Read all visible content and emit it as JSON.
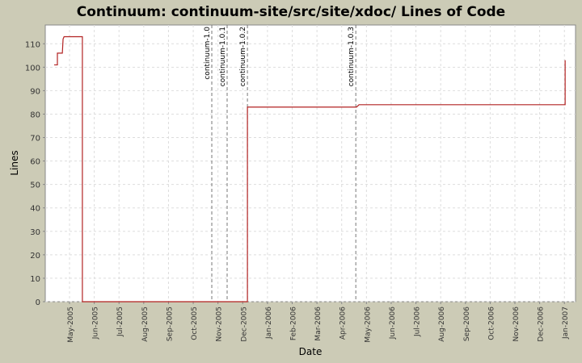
{
  "chart_data": {
    "type": "line",
    "title": "Continuum: continuum-site/src/site/xdoc/ Lines of Code",
    "x_label": "Date",
    "y_label": "Lines",
    "x": [
      3.38,
      3.51,
      3.51,
      3.71,
      3.74,
      3.78,
      4.52,
      4.52,
      11.19,
      11.19,
      15.6,
      15.7,
      24.03,
      24.03
    ],
    "values": [
      101,
      101,
      106,
      106,
      112,
      113,
      113,
      0,
      0,
      83,
      83,
      84,
      84,
      103
    ],
    "color": "#b22222",
    "xlim": [
      3.02,
      24.45
    ],
    "ylim": [
      0,
      118
    ],
    "yticks": [
      0,
      10,
      20,
      30,
      40,
      50,
      60,
      70,
      80,
      90,
      100,
      110
    ],
    "xticks": [
      {
        "value": 4,
        "label": "May-2005"
      },
      {
        "value": 5,
        "label": "Jun-2005"
      },
      {
        "value": 6,
        "label": "Jul-2005"
      },
      {
        "value": 7,
        "label": "Aug-2005"
      },
      {
        "value": 8,
        "label": "Sep-2005"
      },
      {
        "value": 9,
        "label": "Oct-2005"
      },
      {
        "value": 10,
        "label": "Nov-2005"
      },
      {
        "value": 11,
        "label": "Dec-2005"
      },
      {
        "value": 12,
        "label": "Jan-2006"
      },
      {
        "value": 13,
        "label": "Feb-2006"
      },
      {
        "value": 14,
        "label": "Mar-2006"
      },
      {
        "value": 15,
        "label": "Apr-2006"
      },
      {
        "value": 16,
        "label": "May-2006"
      },
      {
        "value": 17,
        "label": "Jun-2006"
      },
      {
        "value": 18,
        "label": "Jul-2006"
      },
      {
        "value": 19,
        "label": "Aug-2006"
      },
      {
        "value": 20,
        "label": "Sep-2006"
      },
      {
        "value": 21,
        "label": "Oct-2006"
      },
      {
        "value": 22,
        "label": "Nov-2006"
      },
      {
        "value": 23,
        "label": "Dec-2006"
      },
      {
        "value": 24,
        "label": "Jan-2007"
      }
    ],
    "annotations": [
      {
        "x": 9.75,
        "label": "continuum-1.0"
      },
      {
        "x": 10.37,
        "label": "continuum-1.0.1"
      },
      {
        "x": 11.19,
        "label": "continuum-1.0.2"
      },
      {
        "x": 15.57,
        "label": "continuum-1.0.3"
      }
    ],
    "grid": true
  }
}
